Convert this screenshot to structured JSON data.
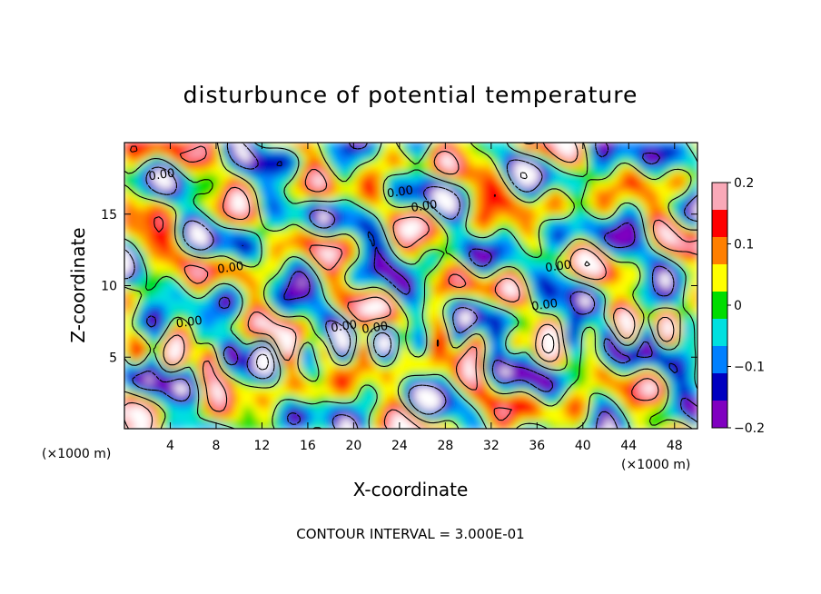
{
  "chart_data": {
    "type": "heatmap",
    "title": "disturbunce of potential temperature",
    "xlabel": "X-coordinate",
    "ylabel": "Z-coordinate",
    "x_unit": "(×1000 m)",
    "z_unit": "(×1000 m)",
    "xlim": [
      0,
      50
    ],
    "ylim": [
      0,
      20
    ],
    "x_ticks": [
      4,
      8,
      12,
      16,
      20,
      24,
      28,
      32,
      36,
      40,
      44,
      48
    ],
    "y_ticks": [
      5,
      10,
      15
    ],
    "colorbar": {
      "range": [
        -0.2,
        0.2
      ],
      "ticks": [
        0.2,
        0.1,
        0,
        -0.1,
        -0.2
      ],
      "tick_labels": [
        "0.2",
        "0.1",
        "0",
        "−0.1",
        "−0.2"
      ],
      "colors": [
        "#f9a9b8",
        "#ff0000",
        "#ff7f00",
        "#ffff00",
        "#00dd00",
        "#00e0e0",
        "#0080ff",
        "#0000c0",
        "#8000c0"
      ]
    },
    "contour_label": "0.00",
    "contour_labels": [
      {
        "x": 3.3,
        "z": 17.5
      },
      {
        "x": 24.1,
        "z": 16.3
      },
      {
        "x": 26.2,
        "z": 15.3
      },
      {
        "x": 9.3,
        "z": 11.0
      },
      {
        "x": 37.9,
        "z": 11.1
      },
      {
        "x": 36.7,
        "z": 8.4
      },
      {
        "x": 5.7,
        "z": 7.2
      },
      {
        "x": 19.2,
        "z": 6.9
      },
      {
        "x": 21.9,
        "z": 6.8
      }
    ],
    "contour_interval_text": "CONTOUR INTERVAL = 3.000E-01"
  }
}
